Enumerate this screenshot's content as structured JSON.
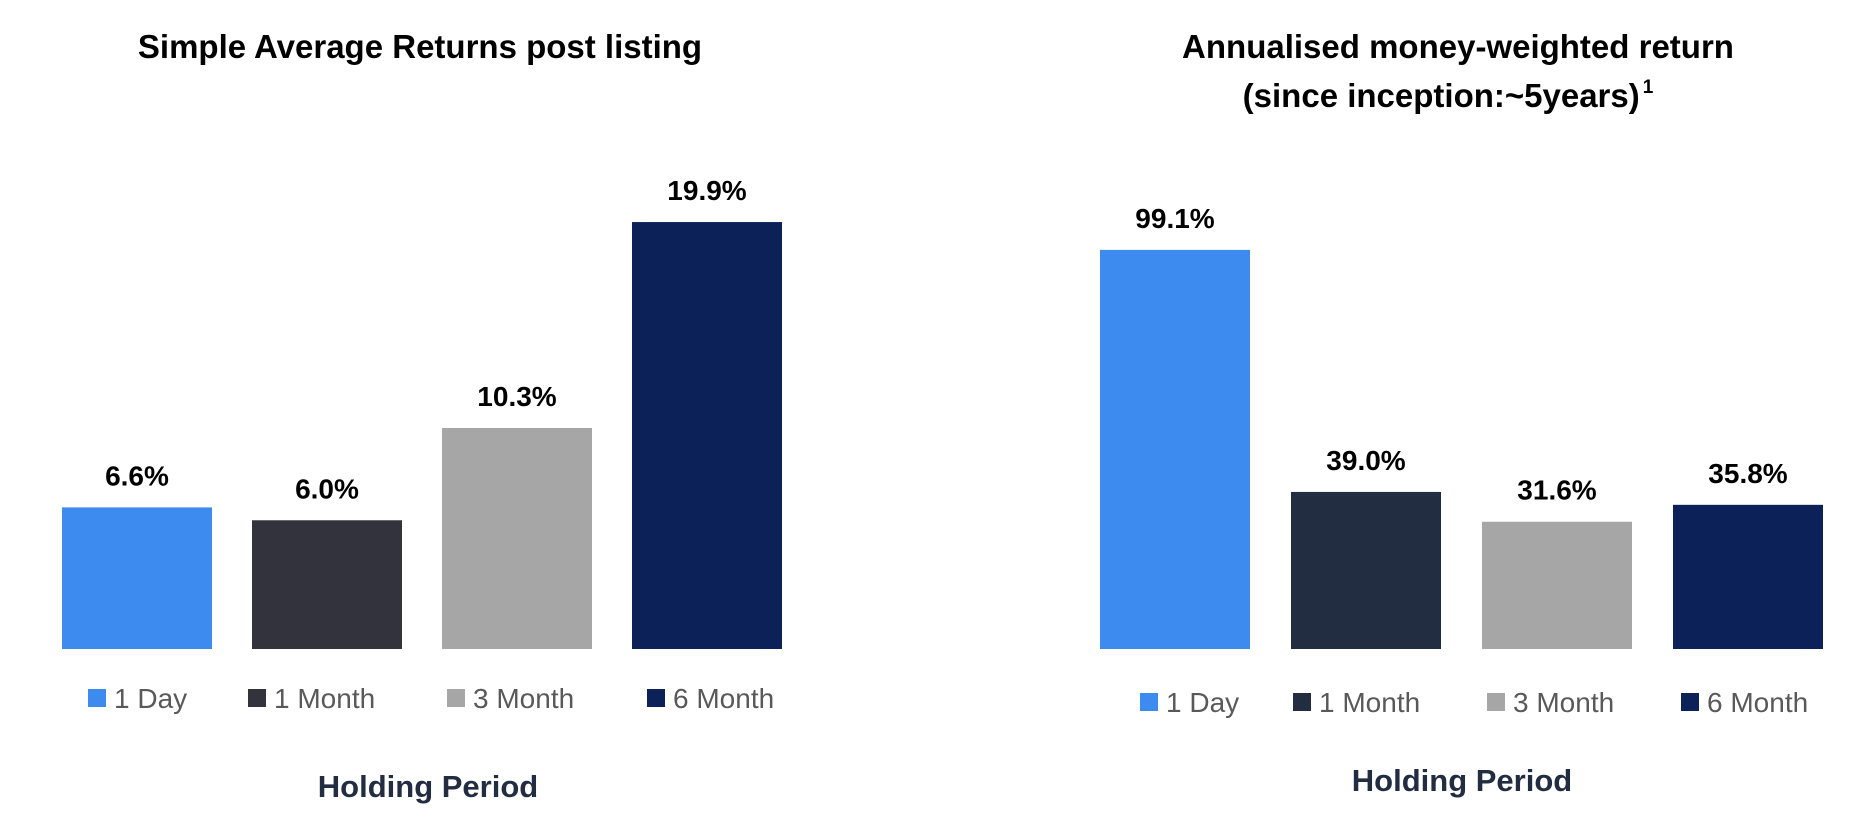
{
  "chart_data": [
    {
      "type": "bar",
      "title": "Simple Average Returns post listing",
      "xlabel": "Holding Period",
      "ylabel": "",
      "categories": [
        "1 Day",
        "1 Month",
        "3 Month",
        "6 Month"
      ],
      "values": [
        6.6,
        6.0,
        10.3,
        19.9
      ],
      "value_labels": [
        "6.6%",
        "6.0%",
        "10.3%",
        "19.9%"
      ],
      "colors": [
        "#3d8bef",
        "#33333d",
        "#a6a6a6",
        "#0b2158"
      ],
      "ylim": [
        0,
        22
      ],
      "grid": false,
      "legend": "bottom"
    },
    {
      "type": "bar",
      "title": "Annualised money-weighted return",
      "title_line2": "(since inception:~5years)",
      "title_superscript": "1",
      "xlabel": "Holding Period",
      "ylabel": "",
      "categories": [
        "1 Day",
        "1 Month",
        "3 Month",
        "6 Month"
      ],
      "values": [
        99.1,
        39.0,
        31.6,
        35.8
      ],
      "value_labels": [
        "99.1%",
        "39.0%",
        "31.6%",
        "35.8%"
      ],
      "colors": [
        "#3d8bef",
        "#232d42",
        "#a6a6a6",
        "#0b2158"
      ],
      "ylim": [
        0,
        110
      ],
      "grid": false,
      "legend": "bottom"
    }
  ],
  "xlabel_color": "#232d42"
}
